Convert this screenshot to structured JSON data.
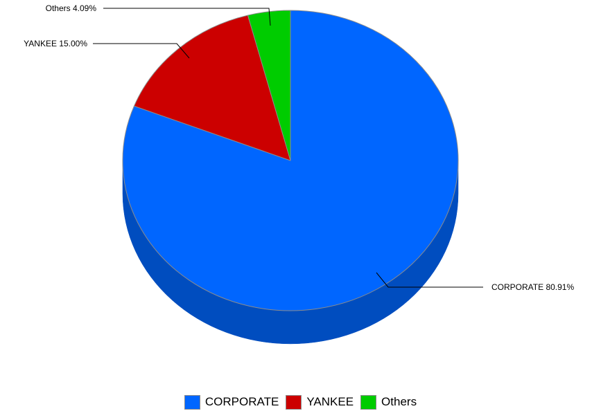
{
  "chart_data": {
    "type": "pie",
    "style": "3d",
    "title": "",
    "slices": [
      {
        "name": "CORPORATE",
        "value": 80.91,
        "label": "CORPORATE 80.91%",
        "color": "#0066ff",
        "side_color": "#004dbf"
      },
      {
        "name": "YANKEE",
        "value": 15.0,
        "label": "YANKEE 15.00%",
        "color": "#cc0000",
        "side_color": "#990000"
      },
      {
        "name": "Others",
        "value": 4.09,
        "label": "Others 4.09%",
        "color": "#00cc00",
        "side_color": "#009900"
      }
    ],
    "legend": {
      "placement": "bottom-center",
      "entries": [
        "CORPORATE",
        "YANKEE",
        "Others"
      ]
    }
  }
}
